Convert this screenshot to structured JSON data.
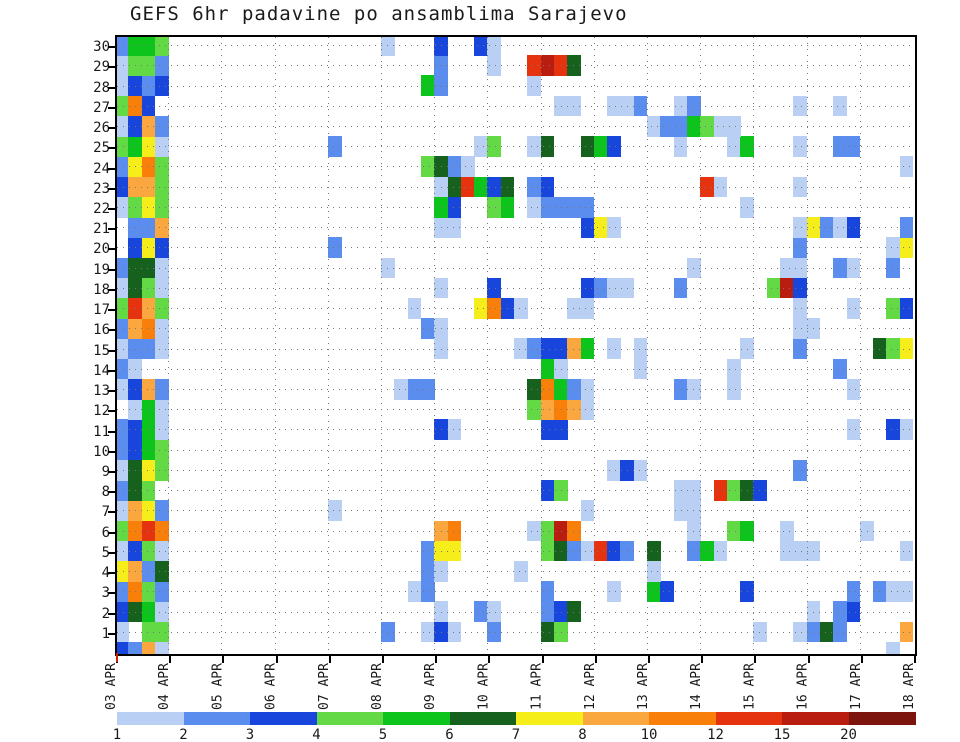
{
  "title": "GEFS 6hr padavine po ansamblima Sarajevo",
  "chart_data": {
    "type": "heatmap",
    "title": "GEFS 6hr padavine po ansamblima Sarajevo",
    "x_axis": {
      "tick_labels": [
        "03 APR",
        "04 APR",
        "05 APR",
        "06 APR",
        "07 APR",
        "08 APR",
        "09 APR",
        "10 APR",
        "11 APR",
        "12 APR",
        "13 APR",
        "14 APR",
        "15 APR",
        "16 APR",
        "17 APR",
        "18 APR"
      ],
      "cells_per_day": 4
    },
    "y_axis": {
      "tick_labels": [
        "30",
        "29",
        "28",
        "27",
        "26",
        "25",
        "24",
        "23",
        "22",
        "21",
        "20",
        "19",
        "18",
        "17",
        "16",
        "15",
        "14",
        "13",
        "12",
        "11",
        "10",
        "9",
        "8",
        "7",
        "6",
        "5",
        "4",
        "3",
        "2",
        "1"
      ]
    },
    "legend": {
      "labels": [
        "1",
        "2",
        "3",
        "4",
        "5",
        "6",
        "7",
        "8",
        "10",
        "12",
        "15",
        "20"
      ],
      "colors": [
        "#b9cff4",
        "#5b8dee",
        "#1845dc",
        "#63da45",
        "#0cc41c",
        "#15611d",
        "#f6ee1a",
        "#f9a73e",
        "#f8800a",
        "#e5330f",
        "#b81d10",
        "#7b150e"
      ],
      "position": "bottom"
    },
    "cells": {
      "30": [
        [
          0,
          "2"
        ],
        [
          1,
          "5"
        ],
        [
          2,
          "5"
        ],
        [
          3,
          "4"
        ],
        [
          20,
          "1"
        ],
        [
          24,
          "3"
        ],
        [
          27,
          "3"
        ],
        [
          28,
          "1"
        ]
      ],
      "29": [
        [
          0,
          "1"
        ],
        [
          1,
          "4"
        ],
        [
          2,
          "4"
        ],
        [
          3,
          "2"
        ],
        [
          24,
          "2"
        ],
        [
          28,
          "1"
        ],
        [
          31,
          "12"
        ],
        [
          32,
          "15"
        ],
        [
          33,
          "12"
        ],
        [
          34,
          "6"
        ]
      ],
      "28": [
        [
          0,
          "1"
        ],
        [
          1,
          "3"
        ],
        [
          2,
          "2"
        ],
        [
          3,
          "3"
        ],
        [
          23,
          "5"
        ],
        [
          24,
          "2"
        ],
        [
          31,
          "1"
        ]
      ],
      "27": [
        [
          0,
          "4"
        ],
        [
          1,
          "10"
        ],
        [
          2,
          "3"
        ],
        [
          33,
          "1"
        ],
        [
          34,
          "1"
        ],
        [
          37,
          "1"
        ],
        [
          38,
          "1"
        ],
        [
          39,
          "2"
        ],
        [
          42,
          "1"
        ],
        [
          43,
          "2"
        ],
        [
          51,
          "1"
        ],
        [
          54,
          "1"
        ]
      ],
      "26": [
        [
          0,
          "1"
        ],
        [
          1,
          "3"
        ],
        [
          2,
          "8"
        ],
        [
          3,
          "2"
        ],
        [
          40,
          "1"
        ],
        [
          41,
          "2"
        ],
        [
          42,
          "2"
        ],
        [
          43,
          "5"
        ],
        [
          44,
          "4"
        ],
        [
          45,
          "1"
        ],
        [
          46,
          "1"
        ]
      ],
      "25": [
        [
          0,
          "4"
        ],
        [
          1,
          "5"
        ],
        [
          2,
          "7"
        ],
        [
          3,
          "1"
        ],
        [
          16,
          "2"
        ],
        [
          27,
          "1"
        ],
        [
          28,
          "4"
        ],
        [
          31,
          "1"
        ],
        [
          32,
          "6"
        ],
        [
          35,
          "6"
        ],
        [
          36,
          "5"
        ],
        [
          37,
          "3"
        ],
        [
          42,
          "1"
        ],
        [
          46,
          "1"
        ],
        [
          47,
          "5"
        ],
        [
          51,
          "1"
        ],
        [
          54,
          "2"
        ],
        [
          55,
          "2"
        ]
      ],
      "24": [
        [
          0,
          "2"
        ],
        [
          1,
          "7"
        ],
        [
          2,
          "10"
        ],
        [
          3,
          "4"
        ],
        [
          23,
          "4"
        ],
        [
          24,
          "6"
        ],
        [
          25,
          "2"
        ],
        [
          26,
          "1"
        ],
        [
          59,
          "1"
        ]
      ],
      "23": [
        [
          0,
          "3"
        ],
        [
          1,
          "8"
        ],
        [
          2,
          "8"
        ],
        [
          3,
          "4"
        ],
        [
          24,
          "1"
        ],
        [
          25,
          "6"
        ],
        [
          26,
          "12"
        ],
        [
          27,
          "5"
        ],
        [
          28,
          "3"
        ],
        [
          29,
          "6"
        ],
        [
          31,
          "2"
        ],
        [
          32,
          "3"
        ],
        [
          44,
          "12"
        ],
        [
          45,
          "1"
        ],
        [
          51,
          "1"
        ]
      ],
      "22": [
        [
          0,
          "1"
        ],
        [
          1,
          "4"
        ],
        [
          2,
          "7"
        ],
        [
          3,
          "4"
        ],
        [
          24,
          "5"
        ],
        [
          25,
          "3"
        ],
        [
          28,
          "4"
        ],
        [
          29,
          "5"
        ],
        [
          31,
          "1"
        ],
        [
          32,
          "2"
        ],
        [
          33,
          "2"
        ],
        [
          34,
          "2"
        ],
        [
          35,
          "2"
        ],
        [
          47,
          "1"
        ]
      ],
      "21": [
        [
          1,
          "2"
        ],
        [
          2,
          "2"
        ],
        [
          3,
          "8"
        ],
        [
          24,
          "1"
        ],
        [
          25,
          "1"
        ],
        [
          35,
          "3"
        ],
        [
          36,
          "7"
        ],
        [
          37,
          "1"
        ],
        [
          51,
          "1"
        ],
        [
          52,
          "7"
        ],
        [
          53,
          "2"
        ],
        [
          54,
          "1"
        ],
        [
          55,
          "3"
        ],
        [
          59,
          "2"
        ]
      ],
      "20": [
        [
          1,
          "3"
        ],
        [
          2,
          "7"
        ],
        [
          3,
          "3"
        ],
        [
          16,
          "2"
        ],
        [
          51,
          "2"
        ],
        [
          58,
          "1"
        ],
        [
          59,
          "7"
        ]
      ],
      "19": [
        [
          0,
          "2"
        ],
        [
          1,
          "6"
        ],
        [
          2,
          "6"
        ],
        [
          3,
          "1"
        ],
        [
          20,
          "1"
        ],
        [
          43,
          "1"
        ],
        [
          50,
          "1"
        ],
        [
          51,
          "1"
        ],
        [
          54,
          "2"
        ],
        [
          55,
          "1"
        ],
        [
          58,
          "2"
        ]
      ],
      "18": [
        [
          0,
          "1"
        ],
        [
          1,
          "6"
        ],
        [
          2,
          "4"
        ],
        [
          3,
          "1"
        ],
        [
          24,
          "1"
        ],
        [
          28,
          "3"
        ],
        [
          35,
          "3"
        ],
        [
          36,
          "2"
        ],
        [
          37,
          "1"
        ],
        [
          38,
          "1"
        ],
        [
          42,
          "2"
        ],
        [
          49,
          "4"
        ],
        [
          50,
          "15"
        ],
        [
          51,
          "3"
        ]
      ],
      "17": [
        [
          0,
          "4"
        ],
        [
          1,
          "12"
        ],
        [
          2,
          "8"
        ],
        [
          3,
          "4"
        ],
        [
          22,
          "1"
        ],
        [
          27,
          "7"
        ],
        [
          28,
          "10"
        ],
        [
          29,
          "3"
        ],
        [
          30,
          "1"
        ],
        [
          34,
          "1"
        ],
        [
          35,
          "1"
        ],
        [
          51,
          "1"
        ],
        [
          55,
          "1"
        ],
        [
          58,
          "4"
        ],
        [
          59,
          "3"
        ]
      ],
      "16": [
        [
          0,
          "2"
        ],
        [
          1,
          "8"
        ],
        [
          2,
          "10"
        ],
        [
          3,
          "1"
        ],
        [
          23,
          "2"
        ],
        [
          24,
          "1"
        ],
        [
          51,
          "1"
        ],
        [
          52,
          "1"
        ]
      ],
      "15": [
        [
          0,
          "1"
        ],
        [
          1,
          "2"
        ],
        [
          2,
          "2"
        ],
        [
          3,
          "1"
        ],
        [
          24,
          "1"
        ],
        [
          30,
          "1"
        ],
        [
          31,
          "2"
        ],
        [
          32,
          "3"
        ],
        [
          33,
          "3"
        ],
        [
          34,
          "8"
        ],
        [
          35,
          "5"
        ],
        [
          37,
          "1"
        ],
        [
          39,
          "1"
        ],
        [
          47,
          "1"
        ],
        [
          51,
          "2"
        ],
        [
          57,
          "6"
        ],
        [
          58,
          "4"
        ],
        [
          59,
          "7"
        ]
      ],
      "14": [
        [
          0,
          "2"
        ],
        [
          1,
          "1"
        ],
        [
          32,
          "5"
        ],
        [
          33,
          "1"
        ],
        [
          39,
          "1"
        ],
        [
          46,
          "1"
        ],
        [
          54,
          "2"
        ]
      ],
      "13": [
        [
          0,
          "1"
        ],
        [
          1,
          "3"
        ],
        [
          2,
          "8"
        ],
        [
          3,
          "2"
        ],
        [
          21,
          "1"
        ],
        [
          22,
          "2"
        ],
        [
          23,
          "2"
        ],
        [
          31,
          "6"
        ],
        [
          32,
          "10"
        ],
        [
          33,
          "5"
        ],
        [
          34,
          "2"
        ],
        [
          35,
          "1"
        ],
        [
          42,
          "2"
        ],
        [
          43,
          "1"
        ],
        [
          46,
          "1"
        ],
        [
          55,
          "1"
        ]
      ],
      "12": [
        [
          1,
          "1"
        ],
        [
          2,
          "5"
        ],
        [
          3,
          "1"
        ],
        [
          31,
          "4"
        ],
        [
          32,
          "8"
        ],
        [
          33,
          "10"
        ],
        [
          34,
          "8"
        ],
        [
          35,
          "1"
        ]
      ],
      "11": [
        [
          0,
          "2"
        ],
        [
          1,
          "3"
        ],
        [
          2,
          "5"
        ],
        [
          3,
          "1"
        ],
        [
          24,
          "3"
        ],
        [
          25,
          "1"
        ],
        [
          32,
          "3"
        ],
        [
          33,
          "3"
        ],
        [
          55,
          "1"
        ],
        [
          58,
          "3"
        ],
        [
          59,
          "1"
        ]
      ],
      "10": [
        [
          0,
          "2"
        ],
        [
          1,
          "3"
        ],
        [
          2,
          "5"
        ],
        [
          3,
          "4"
        ]
      ],
      "9": [
        [
          0,
          "1"
        ],
        [
          1,
          "6"
        ],
        [
          2,
          "7"
        ],
        [
          3,
          "4"
        ],
        [
          37,
          "1"
        ],
        [
          38,
          "3"
        ],
        [
          39,
          "1"
        ],
        [
          51,
          "2"
        ]
      ],
      "8": [
        [
          0,
          "2"
        ],
        [
          1,
          "6"
        ],
        [
          2,
          "4"
        ],
        [
          32,
          "3"
        ],
        [
          33,
          "4"
        ],
        [
          42,
          "1"
        ],
        [
          43,
          "1"
        ],
        [
          45,
          "12"
        ],
        [
          46,
          "4"
        ],
        [
          47,
          "6"
        ],
        [
          48,
          "3"
        ]
      ],
      "7": [
        [
          0,
          "1"
        ],
        [
          1,
          "8"
        ],
        [
          2,
          "7"
        ],
        [
          3,
          "2"
        ],
        [
          16,
          "1"
        ],
        [
          35,
          "1"
        ],
        [
          42,
          "1"
        ],
        [
          43,
          "1"
        ]
      ],
      "6": [
        [
          0,
          "4"
        ],
        [
          1,
          "10"
        ],
        [
          2,
          "12"
        ],
        [
          3,
          "10"
        ],
        [
          24,
          "8"
        ],
        [
          25,
          "10"
        ],
        [
          31,
          "1"
        ],
        [
          32,
          "4"
        ],
        [
          33,
          "15"
        ],
        [
          34,
          "10"
        ],
        [
          43,
          "1"
        ],
        [
          46,
          "4"
        ],
        [
          47,
          "5"
        ],
        [
          50,
          "1"
        ],
        [
          56,
          "1"
        ]
      ],
      "5": [
        [
          0,
          "1"
        ],
        [
          1,
          "3"
        ],
        [
          2,
          "4"
        ],
        [
          3,
          "1"
        ],
        [
          23,
          "2"
        ],
        [
          24,
          "7"
        ],
        [
          25,
          "7"
        ],
        [
          32,
          "4"
        ],
        [
          33,
          "6"
        ],
        [
          34,
          "2"
        ],
        [
          35,
          "1"
        ],
        [
          36,
          "12"
        ],
        [
          37,
          "3"
        ],
        [
          38,
          "2"
        ],
        [
          40,
          "6"
        ],
        [
          43,
          "2"
        ],
        [
          44,
          "5"
        ],
        [
          45,
          "1"
        ],
        [
          50,
          "1"
        ],
        [
          51,
          "1"
        ],
        [
          52,
          "1"
        ],
        [
          59,
          "1"
        ]
      ],
      "4": [
        [
          0,
          "7"
        ],
        [
          1,
          "8"
        ],
        [
          2,
          "2"
        ],
        [
          3,
          "6"
        ],
        [
          23,
          "2"
        ],
        [
          24,
          "1"
        ],
        [
          30,
          "1"
        ],
        [
          40,
          "1"
        ]
      ],
      "3": [
        [
          0,
          "2"
        ],
        [
          1,
          "10"
        ],
        [
          2,
          "4"
        ],
        [
          3,
          "2"
        ],
        [
          22,
          "1"
        ],
        [
          23,
          "2"
        ],
        [
          32,
          "2"
        ],
        [
          37,
          "1"
        ],
        [
          40,
          "5"
        ],
        [
          41,
          "3"
        ],
        [
          47,
          "3"
        ],
        [
          55,
          "2"
        ],
        [
          57,
          "2"
        ],
        [
          58,
          "1"
        ],
        [
          59,
          "1"
        ]
      ],
      "2": [
        [
          0,
          "3"
        ],
        [
          1,
          "6"
        ],
        [
          2,
          "5"
        ],
        [
          3,
          "1"
        ],
        [
          24,
          "1"
        ],
        [
          27,
          "2"
        ],
        [
          28,
          "1"
        ],
        [
          32,
          "2"
        ],
        [
          33,
          "3"
        ],
        [
          34,
          "6"
        ],
        [
          52,
          "1"
        ],
        [
          54,
          "2"
        ],
        [
          55,
          "3"
        ]
      ],
      "1": [
        [
          0,
          "1"
        ],
        [
          2,
          "4"
        ],
        [
          3,
          "4"
        ],
        [
          20,
          "2"
        ],
        [
          23,
          "1"
        ],
        [
          24,
          "3"
        ],
        [
          25,
          "1"
        ],
        [
          28,
          "2"
        ],
        [
          32,
          "6"
        ],
        [
          33,
          "4"
        ],
        [
          48,
          "1"
        ],
        [
          51,
          "1"
        ],
        [
          52,
          "2"
        ],
        [
          53,
          "6"
        ],
        [
          54,
          "2"
        ],
        [
          59,
          "8"
        ]
      ],
      "0": [
        [
          0,
          "3"
        ],
        [
          1,
          "2"
        ],
        [
          2,
          "8"
        ],
        [
          3,
          "1"
        ],
        [
          58,
          "1"
        ]
      ]
    }
  }
}
